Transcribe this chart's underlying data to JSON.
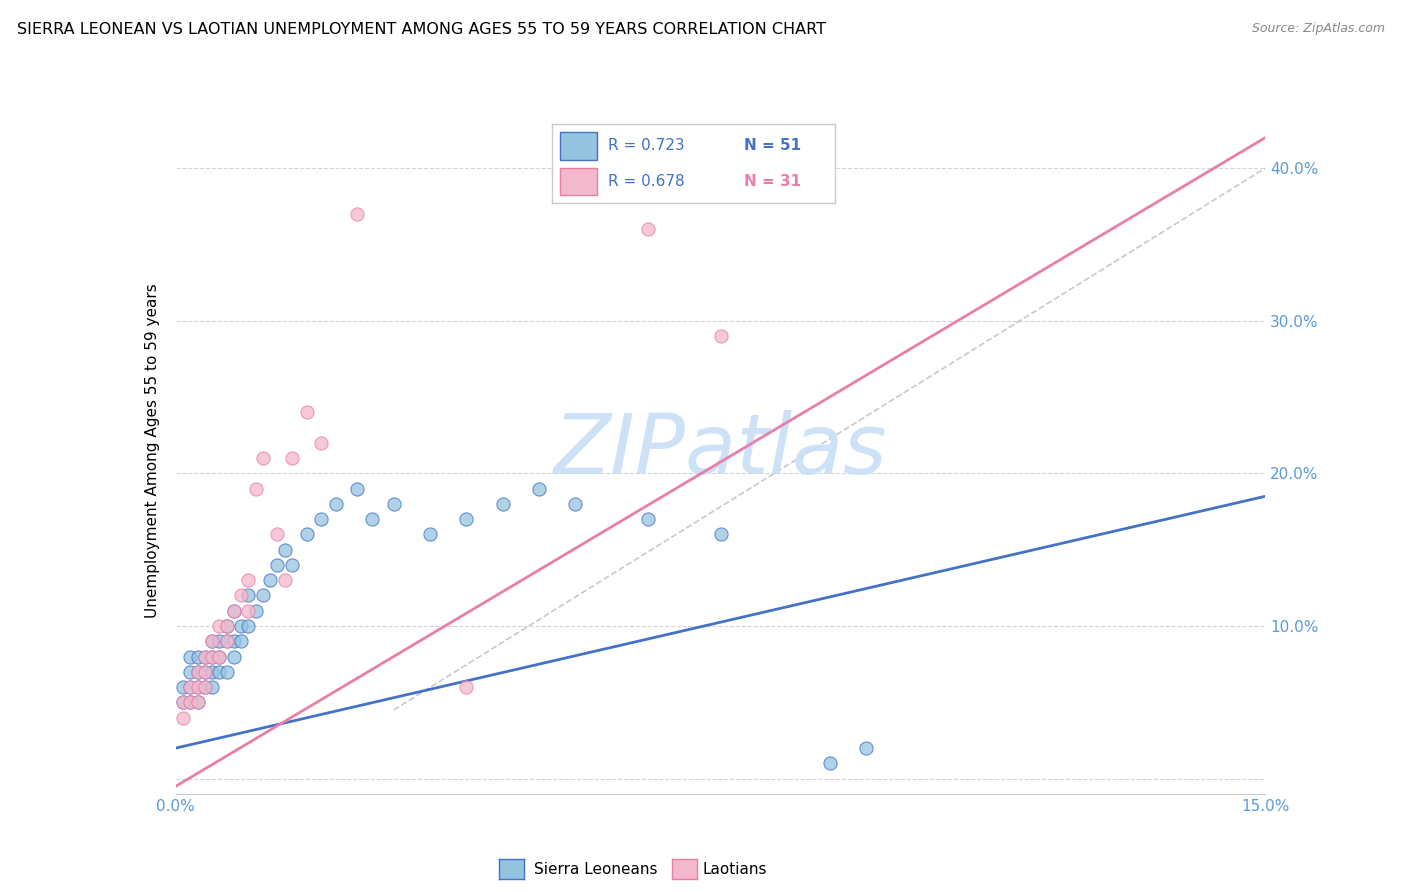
{
  "title": "SIERRA LEONEAN VS LAOTIAN UNEMPLOYMENT AMONG AGES 55 TO 59 YEARS CORRELATION CHART",
  "source": "Source: ZipAtlas.com",
  "ylabel": "Unemployment Among Ages 55 to 59 years",
  "xlim": [
    0,
    0.15
  ],
  "ylim": [
    -0.01,
    0.44
  ],
  "xtick_positions": [
    0.0,
    0.025,
    0.05,
    0.075,
    0.1,
    0.125,
    0.15
  ],
  "xticklabels": [
    "0.0%",
    "",
    "",
    "",
    "",
    "",
    "15.0%"
  ],
  "ytick_positions": [
    0.0,
    0.1,
    0.2,
    0.3,
    0.4
  ],
  "yticklabels_right": [
    "",
    "10.0%",
    "20.0%",
    "30.0%",
    "40.0%"
  ],
  "blue_color": "#94c4e0",
  "pink_color": "#f4b8cc",
  "blue_line_color": "#4472c4",
  "pink_line_color": "#e87faa",
  "axis_tick_color": "#5b9bd5",
  "grid_color": "#d0d0d0",
  "watermark": "ZIPatlas",
  "watermark_color": "#c8dff5",
  "blue_scatter_x": [
    0.001,
    0.001,
    0.002,
    0.002,
    0.002,
    0.002,
    0.003,
    0.003,
    0.003,
    0.003,
    0.004,
    0.004,
    0.004,
    0.005,
    0.005,
    0.005,
    0.005,
    0.006,
    0.006,
    0.006,
    0.007,
    0.007,
    0.007,
    0.008,
    0.008,
    0.008,
    0.009,
    0.009,
    0.01,
    0.01,
    0.011,
    0.012,
    0.013,
    0.014,
    0.015,
    0.016,
    0.018,
    0.02,
    0.022,
    0.025,
    0.027,
    0.03,
    0.035,
    0.04,
    0.045,
    0.05,
    0.055,
    0.065,
    0.075,
    0.09,
    0.095
  ],
  "blue_scatter_y": [
    0.05,
    0.06,
    0.05,
    0.06,
    0.07,
    0.08,
    0.05,
    0.06,
    0.07,
    0.08,
    0.06,
    0.07,
    0.08,
    0.06,
    0.07,
    0.08,
    0.09,
    0.07,
    0.08,
    0.09,
    0.07,
    0.09,
    0.1,
    0.08,
    0.09,
    0.11,
    0.09,
    0.1,
    0.1,
    0.12,
    0.11,
    0.12,
    0.13,
    0.14,
    0.15,
    0.14,
    0.16,
    0.17,
    0.18,
    0.19,
    0.17,
    0.18,
    0.16,
    0.17,
    0.18,
    0.19,
    0.18,
    0.17,
    0.16,
    0.01,
    0.02
  ],
  "pink_scatter_x": [
    0.001,
    0.001,
    0.002,
    0.002,
    0.003,
    0.003,
    0.003,
    0.004,
    0.004,
    0.004,
    0.005,
    0.005,
    0.006,
    0.006,
    0.007,
    0.007,
    0.008,
    0.009,
    0.01,
    0.01,
    0.011,
    0.012,
    0.014,
    0.015,
    0.016,
    0.018,
    0.02,
    0.025,
    0.04,
    0.065,
    0.075
  ],
  "pink_scatter_y": [
    0.04,
    0.05,
    0.05,
    0.06,
    0.05,
    0.06,
    0.07,
    0.06,
    0.07,
    0.08,
    0.08,
    0.09,
    0.08,
    0.1,
    0.09,
    0.1,
    0.11,
    0.12,
    0.11,
    0.13,
    0.19,
    0.21,
    0.16,
    0.13,
    0.21,
    0.24,
    0.22,
    0.37,
    0.06,
    0.36,
    0.29
  ],
  "blue_line_x": [
    0.0,
    0.15
  ],
  "blue_line_y": [
    0.02,
    0.185
  ],
  "pink_line_x": [
    0.0,
    0.15
  ],
  "pink_line_y": [
    -0.005,
    0.42
  ],
  "dashed_line_x": [
    0.03,
    0.15
  ],
  "dashed_line_y": [
    0.045,
    0.4
  ],
  "legend_R_blue": "R = 0.723",
  "legend_N_blue": "N = 51",
  "legend_R_pink": "R = 0.678",
  "legend_N_pink": "N = 31",
  "bottom_legend_blue": "Sierra Leoneans",
  "bottom_legend_pink": "Laotians"
}
